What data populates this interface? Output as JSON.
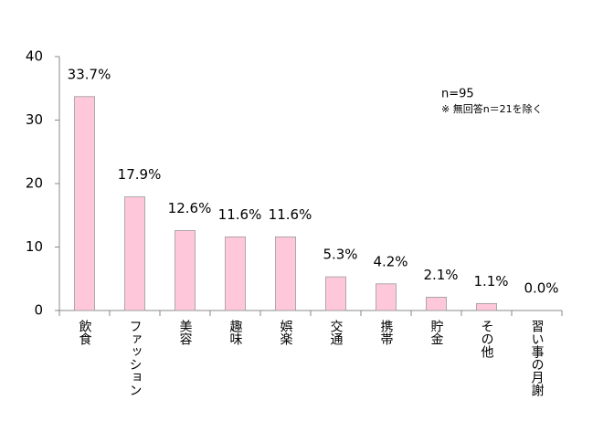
{
  "chart_data": {
    "type": "bar",
    "categories": [
      "飲食",
      "ファッション",
      "美容",
      "趣味",
      "娯楽",
      "交通",
      "携帯",
      "貯金",
      "その他",
      "習い事の月謝"
    ],
    "values": [
      33.7,
      17.9,
      12.6,
      11.6,
      11.6,
      5.3,
      4.2,
      2.1,
      1.1,
      0.0
    ],
    "value_labels": [
      "33.7%",
      "17.9%",
      "12.6%",
      "11.6%",
      "11.6%",
      "5.3%",
      "4.2%",
      "2.1%",
      "1.1%",
      "0.0%"
    ],
    "color": "#ffc8da",
    "ylim": [
      0,
      40
    ],
    "yticks": [
      0,
      10,
      20,
      30,
      40
    ],
    "grid": false,
    "annotations": [
      "n=95",
      "※ 無回答n＝21を除く"
    ]
  }
}
